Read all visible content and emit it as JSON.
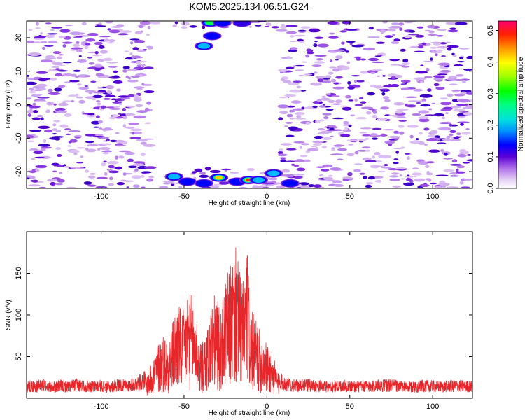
{
  "title": "KOM5.2025.134.06.51.G24",
  "chart_data": [
    {
      "type": "heatmap",
      "xlabel": "Height of straight line (km)",
      "ylabel": "Frequency (Hz)",
      "xlim": [
        -145,
        124
      ],
      "ylim": [
        -25,
        25
      ],
      "x_ticks": [
        -100,
        -50,
        0,
        50,
        100
      ],
      "y_ticks": [
        -20,
        -10,
        0,
        10,
        20
      ],
      "colorbar": {
        "label": "Normalized spectral amplitude",
        "range": [
          0,
          0.53
        ],
        "ticks": [
          "0.0",
          "0.1",
          "0.2",
          "0.3",
          "0.4",
          "0.5"
        ],
        "colors": [
          "#ffffff",
          "#d9b8f2",
          "#8a2be2",
          "#4b00d0",
          "#0000ff",
          "#00c8ff",
          "#00ffb0",
          "#00ff00",
          "#c8ff00",
          "#ffff00",
          "#ff8000",
          "#ff0000",
          "#ff0080"
        ]
      },
      "blank_region": {
        "x_from": -70,
        "x_to": 8
      },
      "hotspots": [
        {
          "x": -56,
          "y": -21.5,
          "value": 0.22
        },
        {
          "x": -48,
          "y": -23,
          "value": 0.18
        },
        {
          "x": -38,
          "y": -23.5,
          "value": 0.16
        },
        {
          "x": -29,
          "y": -21.8,
          "value": 0.42
        },
        {
          "x": -18,
          "y": -23,
          "value": 0.2
        },
        {
          "x": -11,
          "y": -22.5,
          "value": 0.45
        },
        {
          "x": -5,
          "y": -22.5,
          "value": 0.25
        },
        {
          "x": 4,
          "y": -20.5,
          "value": 0.28
        },
        {
          "x": 14,
          "y": -23.5,
          "value": 0.15
        },
        {
          "x": -38,
          "y": 17.5,
          "value": 0.22
        },
        {
          "x": -33,
          "y": 20.5,
          "value": 0.2
        },
        {
          "x": -34,
          "y": 24.5,
          "value": 0.3
        },
        {
          "x": -27,
          "y": 24.5,
          "value": 0.18
        },
        {
          "x": -15,
          "y": 24.5,
          "value": 0.1
        }
      ]
    },
    {
      "type": "line",
      "xlabel": "Height of straight line (km)",
      "ylabel": "SNR (v/v)",
      "xlim": [
        -145,
        124
      ],
      "ylim": [
        0,
        200
      ],
      "x_ticks": [
        -100,
        -50,
        0,
        50,
        100
      ],
      "y_ticks": [
        50,
        100,
        150
      ],
      "series": [
        {
          "color": "#e8262a",
          "x": [
            -145,
            -140,
            -135,
            -130,
            -125,
            -120,
            -115,
            -110,
            -105,
            -100,
            -95,
            -90,
            -85,
            -80,
            -75,
            -72,
            -69,
            -66,
            -63,
            -60,
            -57,
            -54,
            -51,
            -48,
            -45,
            -42,
            -40,
            -37,
            -34,
            -31,
            -28,
            -25,
            -22,
            -19,
            -16,
            -14,
            -12,
            -10,
            -7,
            -4,
            -1,
            2,
            5,
            8,
            12,
            18,
            25,
            35,
            45,
            55,
            65,
            75,
            85,
            95,
            105,
            115,
            124
          ],
          "y": [
            16,
            15,
            17,
            14,
            16,
            15,
            17,
            16,
            15,
            16,
            14,
            17,
            16,
            18,
            22,
            28,
            45,
            60,
            75,
            65,
            85,
            110,
            95,
            120,
            115,
            90,
            60,
            70,
            100,
            120,
            95,
            130,
            150,
            170,
            140,
            130,
            175,
            100,
            90,
            75,
            65,
            55,
            40,
            22,
            18,
            16,
            17,
            15,
            16,
            15,
            16,
            17,
            14,
            16,
            15,
            16,
            15
          ]
        }
      ]
    }
  ]
}
